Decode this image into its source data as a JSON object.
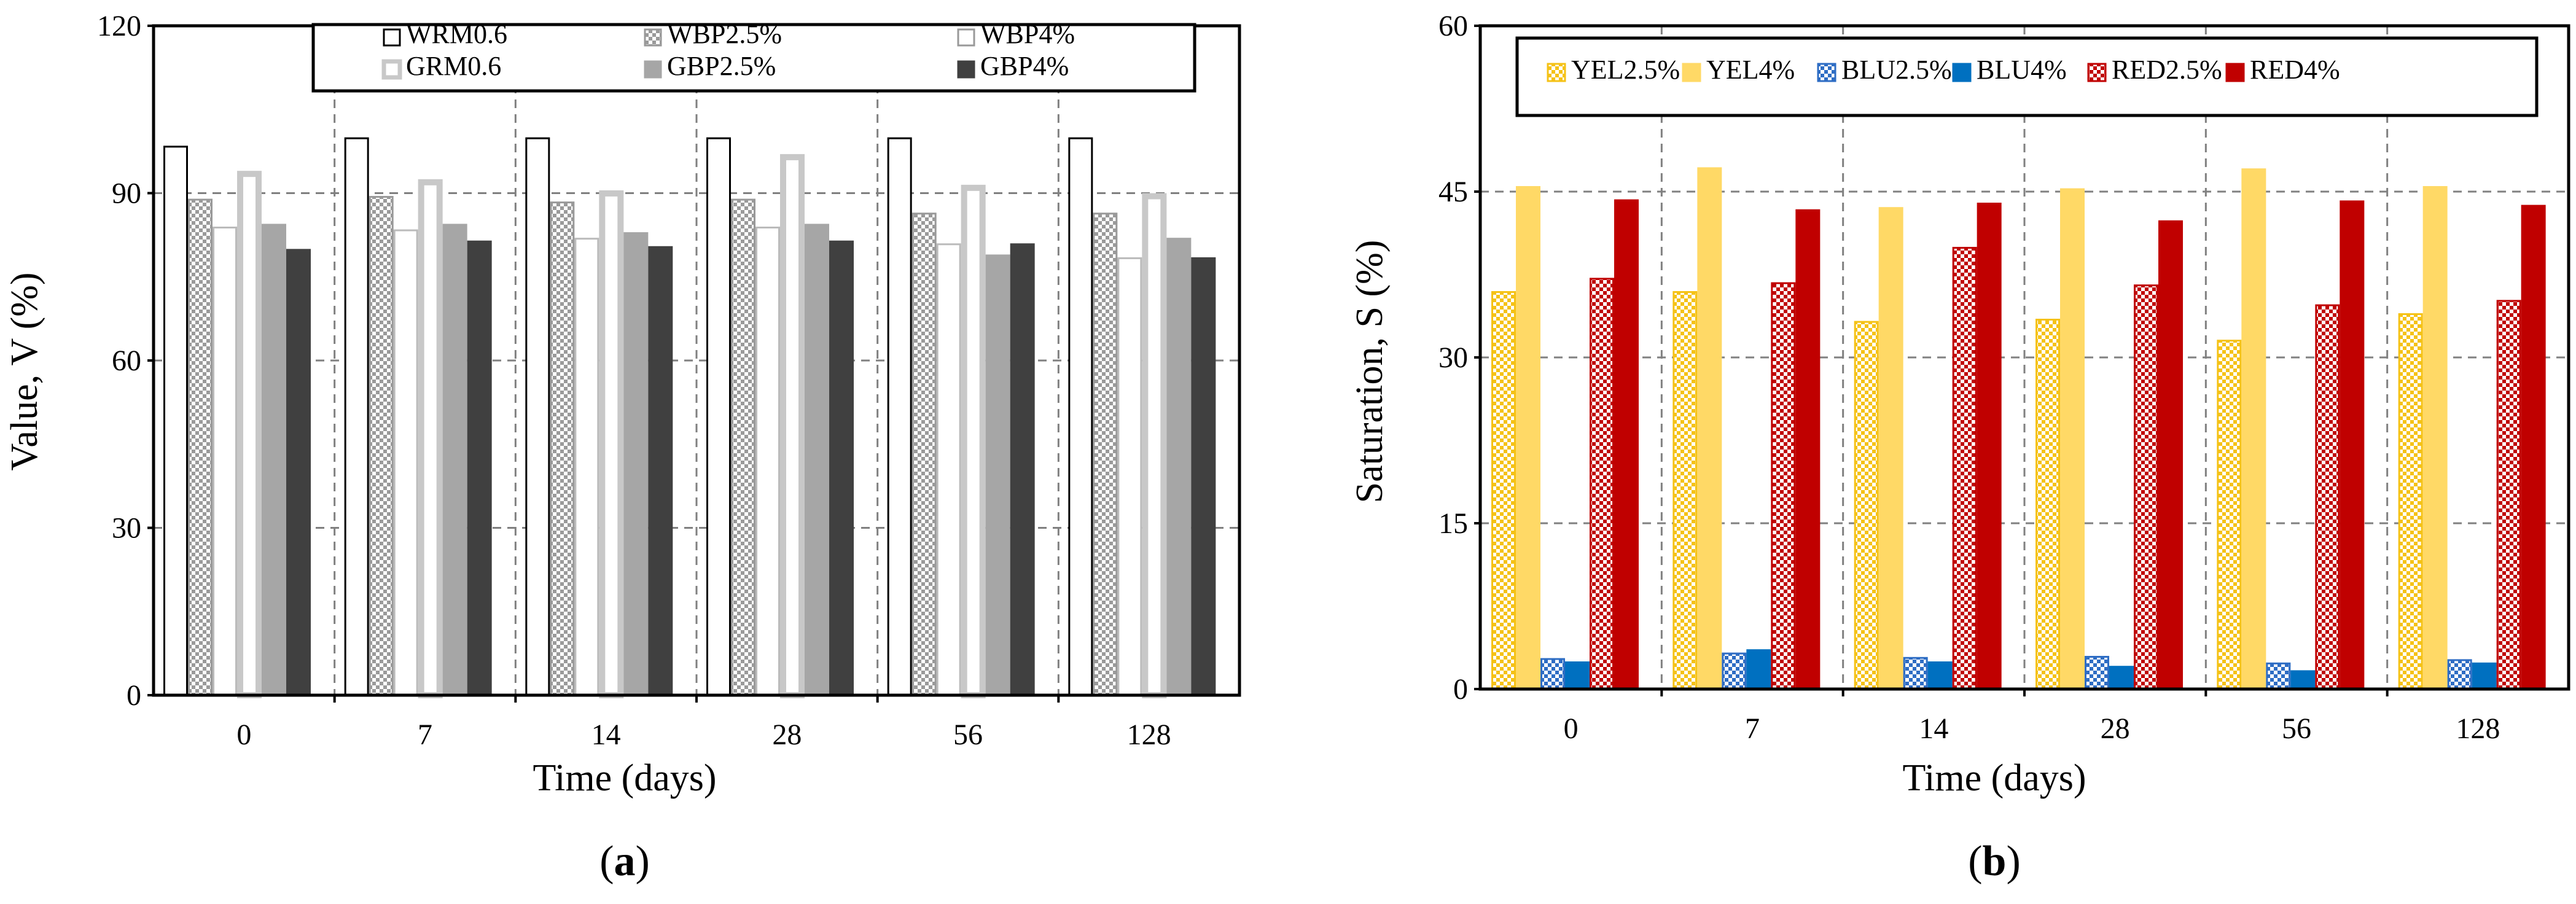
{
  "chart_data": [
    {
      "type": "bar",
      "panel_label": "a",
      "title": "",
      "xlabel": "Time (days)",
      "ylabel": "Value, V (%)",
      "ylim": [
        0,
        120
      ],
      "yticks": [
        0,
        30,
        60,
        90,
        120
      ],
      "grid": true,
      "legend_position": "top",
      "categories": [
        "0",
        "7",
        "14",
        "28",
        "56",
        "128"
      ],
      "series": [
        {
          "name": "WRM0.6",
          "style": "solid",
          "fill": "#ffffff",
          "stroke": "#000000",
          "values": [
            98.5,
            100,
            100,
            100,
            100,
            100
          ]
        },
        {
          "name": "WBP2.5%",
          "style": "checker",
          "fill": "#ffffff",
          "stroke": "#999999",
          "values": [
            89,
            89.5,
            88.5,
            89,
            86.5,
            86.5
          ]
        },
        {
          "name": "WBP4%",
          "style": "solid",
          "fill": "#ffffff",
          "stroke": "#bbbbbb",
          "values": [
            84,
            83.5,
            82,
            84,
            81,
            78.5
          ]
        },
        {
          "name": "GRM0.6",
          "style": "hollow-thick",
          "fill": "#ffffff",
          "stroke": "#c8c8c8",
          "values": [
            94,
            92.5,
            90.5,
            97,
            91.5,
            90
          ]
        },
        {
          "name": "GBP2.5%",
          "style": "solid",
          "fill": "#a6a6a6",
          "stroke": "#a6a6a6",
          "values": [
            84.5,
            84.5,
            83,
            84.5,
            79,
            82
          ]
        },
        {
          "name": "GBP4%",
          "style": "solid",
          "fill": "#404040",
          "stroke": "#404040",
          "values": [
            80,
            81.5,
            80.5,
            81.5,
            81,
            78.5
          ]
        }
      ]
    },
    {
      "type": "bar",
      "panel_label": "b",
      "title": "",
      "xlabel": "Time (days)",
      "ylabel": "Saturation, S (%)",
      "ylim": [
        0,
        60
      ],
      "yticks": [
        0,
        15,
        30,
        45,
        60
      ],
      "grid": true,
      "legend_position": "top",
      "categories": [
        "0",
        "7",
        "14",
        "28",
        "56",
        "128"
      ],
      "series": [
        {
          "name": "YEL2.5%",
          "style": "checker",
          "fill": "#ffffff",
          "stroke": "#f5c216",
          "values": [
            36,
            36,
            33.3,
            33.5,
            31.6,
            34
          ]
        },
        {
          "name": "YEL4%",
          "style": "solid",
          "fill": "#ffd966",
          "stroke": "#ffd966",
          "values": [
            45.5,
            47.2,
            43.6,
            45.3,
            47.1,
            45.5
          ]
        },
        {
          "name": "BLU2.5%",
          "style": "checker",
          "fill": "#ffffff",
          "stroke": "#2e6dc4",
          "values": [
            2.8,
            3.3,
            2.9,
            3,
            2.4,
            2.7
          ]
        },
        {
          "name": "BLU4%",
          "style": "solid",
          "fill": "#0070c0",
          "stroke": "#0070c0",
          "values": [
            2.5,
            3.6,
            2.5,
            2.1,
            1.7,
            2.4
          ]
        },
        {
          "name": "RED2.5%",
          "style": "checker",
          "fill": "#ffffff",
          "stroke": "#c00000",
          "values": [
            37.2,
            36.8,
            40,
            36.6,
            34.8,
            35.2
          ]
        },
        {
          "name": "RED4%",
          "style": "solid",
          "fill": "#c00000",
          "stroke": "#c00000",
          "values": [
            44.3,
            43.4,
            44,
            42.4,
            44.2,
            43.8
          ]
        }
      ]
    }
  ]
}
